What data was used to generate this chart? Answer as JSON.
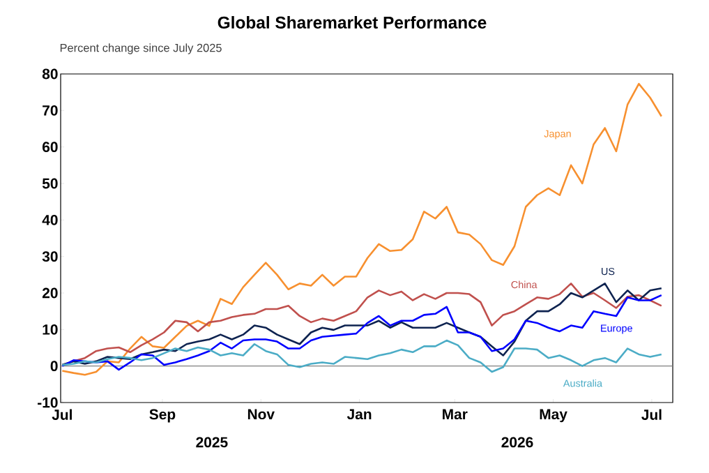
{
  "chart_data": {
    "type": "line",
    "title": "Global Sharemarket Performance",
    "subtitle": "Percent change since July 2025",
    "x": [
      "2025-07-01",
      "2025-07-08",
      "2025-07-15",
      "2025-07-22",
      "2025-07-29",
      "2025-08-05",
      "2025-08-12",
      "2025-08-19",
      "2025-08-26",
      "2025-09-02",
      "2025-09-09",
      "2025-09-16",
      "2025-09-23",
      "2025-09-30",
      "2025-10-07",
      "2025-10-14",
      "2025-10-21",
      "2025-10-28",
      "2025-11-04",
      "2025-11-11",
      "2025-11-18",
      "2025-11-25",
      "2025-12-02",
      "2025-12-09",
      "2025-12-16",
      "2025-12-23",
      "2025-12-30",
      "2026-01-06",
      "2026-01-13",
      "2026-01-20",
      "2026-01-27",
      "2026-02-03",
      "2026-02-10",
      "2026-02-17",
      "2026-02-24",
      "2026-03-03",
      "2026-03-10",
      "2026-03-17",
      "2026-03-24",
      "2026-03-31",
      "2026-04-07",
      "2026-04-14",
      "2026-04-21",
      "2026-04-28",
      "2026-05-05",
      "2026-05-12",
      "2026-05-19",
      "2026-05-26",
      "2026-06-02",
      "2026-06-09",
      "2026-06-16",
      "2026-06-23",
      "2026-06-30",
      "2026-07-07"
    ],
    "series": [
      {
        "name": "Japan",
        "color": "#f7902f",
        "values": [
          -1.3,
          -1.9,
          -2.4,
          -1.6,
          1.3,
          1,
          4.8,
          8,
          5.4,
          5,
          8,
          11,
          12.4,
          11,
          18.4,
          17,
          21.6,
          25,
          28.3,
          25,
          21,
          22.6,
          22,
          25,
          22,
          24.5,
          24.5,
          29.6,
          33.4,
          31.5,
          31.8,
          34.7,
          42.3,
          40.4,
          43.6,
          36.6,
          36,
          33.4,
          29,
          27.7,
          32.8,
          43.6,
          46.8,
          48.7,
          46.8,
          55,
          50,
          60.7,
          65.2,
          58.8,
          71.6,
          77.3,
          73.5,
          68.4
        ]
      },
      {
        "name": "China",
        "color": "#c0504d",
        "values": [
          0.3,
          1.3,
          2.2,
          4.1,
          4.8,
          5.1,
          3.8,
          5.7,
          7.3,
          9.2,
          12.4,
          12,
          9.5,
          12,
          12.4,
          13.4,
          14,
          14.3,
          15.6,
          15.6,
          16.5,
          13.7,
          12,
          13,
          12.4,
          13.7,
          15,
          18.8,
          20.7,
          19.4,
          20.4,
          18,
          19.7,
          18.4,
          20,
          20,
          19.7,
          17.5,
          11.1,
          14,
          15,
          16.9,
          18.8,
          18.4,
          19.7,
          22.6,
          19,
          20,
          18,
          15.9,
          19,
          19.4,
          18,
          16.5
        ]
      },
      {
        "name": "US",
        "color": "#0e2350",
        "values": [
          0.3,
          1.3,
          0.6,
          1.3,
          2.5,
          2.2,
          1.9,
          3.2,
          3.8,
          4.5,
          4.1,
          6,
          6.7,
          7.3,
          8.6,
          7.3,
          8.6,
          11.1,
          10.5,
          8.6,
          7.3,
          6,
          9.2,
          10.5,
          9.9,
          11.1,
          11.1,
          11.1,
          12.4,
          10.5,
          12,
          10.5,
          10.5,
          10.5,
          11.8,
          10.5,
          9.2,
          8,
          5.4,
          2.9,
          6.7,
          12.4,
          15,
          15,
          16.9,
          20,
          18.8,
          20.7,
          22.6,
          17.5,
          20.7,
          18,
          20.7,
          21.3
        ]
      },
      {
        "name": "Europe",
        "color": "#0000ff",
        "values": [
          0,
          1.6,
          1.3,
          1,
          1.3,
          -1,
          1,
          3.2,
          2.9,
          0.3,
          1,
          1.9,
          2.9,
          4.1,
          6.4,
          4.8,
          7,
          7.3,
          7.3,
          6.7,
          4.8,
          4.8,
          7,
          8,
          8.3,
          8.6,
          8.9,
          11.8,
          13.7,
          11.1,
          12.4,
          12.4,
          14,
          14.3,
          16.2,
          9.2,
          9.2,
          8,
          4.1,
          4.8,
          7.3,
          12.4,
          11.8,
          10.5,
          9.5,
          11.1,
          10.5,
          15,
          14.3,
          13.7,
          18.8,
          18,
          18,
          19.4
        ]
      },
      {
        "name": "Australia",
        "color": "#4bacc6",
        "values": [
          0.3,
          0.6,
          1.3,
          1,
          1.9,
          2.5,
          2.2,
          1.6,
          2.2,
          3.5,
          4.8,
          4.1,
          5.1,
          4.5,
          2.9,
          3.5,
          2.9,
          6,
          4.1,
          3.2,
          0.3,
          -0.3,
          0.6,
          1,
          0.6,
          2.5,
          2.2,
          1.9,
          2.9,
          3.5,
          4.5,
          3.8,
          5.4,
          5.4,
          7,
          5.7,
          2.2,
          1,
          -1.6,
          -0.3,
          4.8,
          4.8,
          4.5,
          2.2,
          2.9,
          1.6,
          0,
          1.6,
          2.2,
          1,
          4.8,
          3.2,
          2.5,
          3.2
        ]
      }
    ],
    "xlim": [
      "2025-06-30",
      "2026-07-14"
    ],
    "xticks": [
      {
        "value": "2025-07-01",
        "label": "Jul"
      },
      {
        "value": "2025-09-01",
        "label": "Sep"
      },
      {
        "value": "2025-11-01",
        "label": "Nov"
      },
      {
        "value": "2026-01-01",
        "label": "Jan"
      },
      {
        "value": "2026-03-01",
        "label": "Mar"
      },
      {
        "value": "2026-05-01",
        "label": "May"
      },
      {
        "value": "2026-07-01",
        "label": "Jul"
      }
    ],
    "ylim": [
      -10,
      80
    ],
    "yticks": [
      -10,
      0,
      10,
      20,
      30,
      40,
      50,
      60,
      70,
      80
    ],
    "ref_lines": [
      {
        "axis": "y",
        "value": 0,
        "color": "#808080"
      }
    ],
    "annotations": [
      "2025",
      "2026"
    ]
  }
}
